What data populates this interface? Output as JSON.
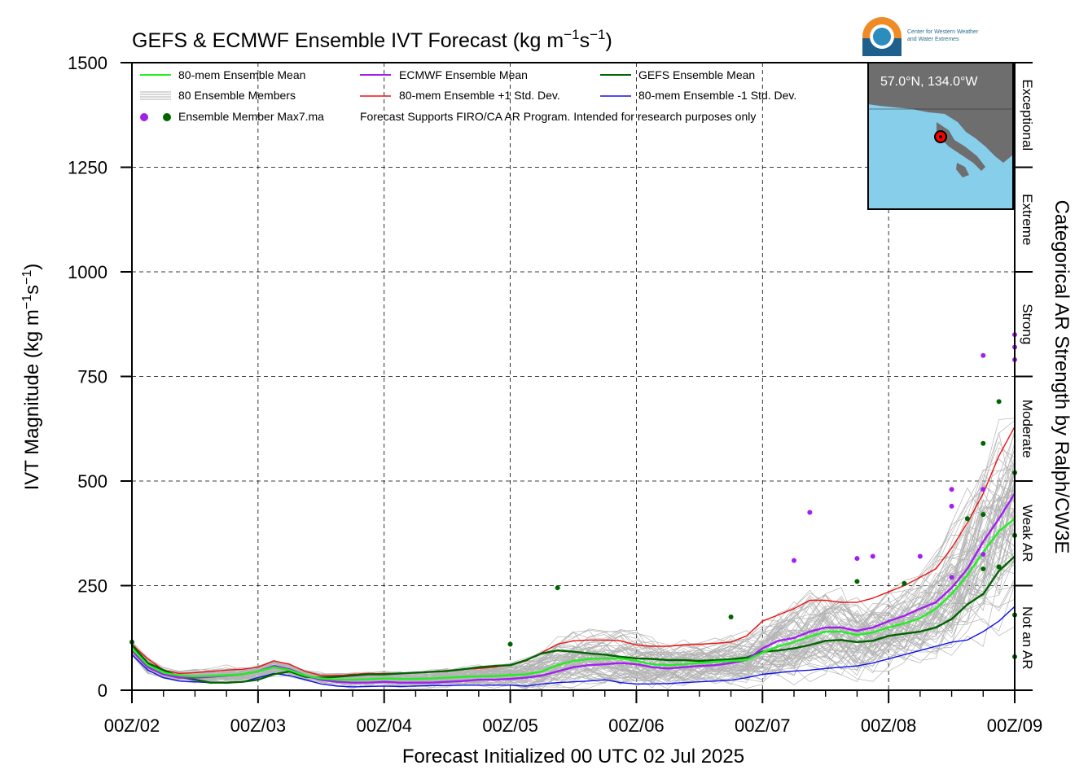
{
  "chart_data": {
    "type": "line",
    "title": "GEFS & ECMWF Ensemble IVT Forecast (kg m",
    "title_exp1": "−1",
    "title_mid": "s",
    "title_exp2": "−1",
    "title_end": ")",
    "ylabel": "IVT Magnitude (kg m",
    "ylabel_exp1": "−1",
    "ylabel_mid": "s",
    "ylabel_exp2": "−1",
    "ylabel_end": ")",
    "xlabel": "Forecast Initialized 00 UTC 02 Jul 2025",
    "right_label": "Categorical AR Strength by Ralph/CW3E",
    "ylim": [
      0,
      1500
    ],
    "xlim": [
      0,
      168
    ],
    "y_ticks": [
      0,
      250,
      500,
      750,
      1000,
      1250,
      1500
    ],
    "x_ticks": [
      {
        "hour": 0,
        "label": "00Z/02"
      },
      {
        "hour": 24,
        "label": "00Z/03"
      },
      {
        "hour": 48,
        "label": "00Z/04"
      },
      {
        "hour": 72,
        "label": "00Z/05"
      },
      {
        "hour": 96,
        "label": "00Z/06"
      },
      {
        "hour": 120,
        "label": "00Z/07"
      },
      {
        "hour": 144,
        "label": "00Z/08"
      },
      {
        "hour": 168,
        "label": "00Z/09"
      }
    ],
    "categories": [
      {
        "label": "Not an AR",
        "from": 0,
        "to": 250
      },
      {
        "label": "Weak AR",
        "from": 250,
        "to": 500
      },
      {
        "label": "Moderate",
        "from": 500,
        "to": 750
      },
      {
        "label": "Strong",
        "from": 750,
        "to": 1000
      },
      {
        "label": "Extreme",
        "from": 1000,
        "to": 1250
      },
      {
        "label": "Exceptional",
        "from": 1250,
        "to": 1500
      }
    ],
    "grid": true,
    "legend_position": "top-left",
    "legend": [
      {
        "label": "80-mem Ensemble Mean",
        "color": "#22ee22",
        "kind": "line"
      },
      {
        "label": "ECMWF Ensemble Mean",
        "color": "#a020f0",
        "kind": "line"
      },
      {
        "label": "GEFS Ensemble Mean",
        "color": "#006400",
        "kind": "line"
      },
      {
        "label": "80 Ensemble Members",
        "color": "#b0b0b0",
        "kind": "lines"
      },
      {
        "label": "80-mem Ensemble +1 Std. Dev.",
        "color": "#ee1111",
        "kind": "line"
      },
      {
        "label": "80-mem Ensemble -1 Std. Dev.",
        "color": "#1010ee",
        "kind": "line"
      },
      {
        "label": "Ensemble Member Max7.ma",
        "color": "#a020f0",
        "color2": "#006400",
        "kind": "dots"
      }
    ],
    "note": "Forecast Supports FIRO/CA AR Program. Intended for research purposes only",
    "x": [
      0,
      3,
      6,
      9,
      12,
      15,
      18,
      21,
      24,
      27,
      30,
      33,
      36,
      39,
      42,
      45,
      48,
      51,
      54,
      57,
      60,
      63,
      66,
      69,
      72,
      75,
      78,
      81,
      84,
      87,
      90,
      93,
      96,
      99,
      102,
      105,
      108,
      111,
      114,
      117,
      120,
      123,
      126,
      129,
      132,
      135,
      138,
      141,
      144,
      147,
      150,
      153,
      156,
      159,
      162,
      165,
      168
    ],
    "series": [
      {
        "name": "80-mem Ensemble Mean",
        "color": "#22ee22",
        "width": 2.4,
        "values": [
          100,
          60,
          42,
          35,
          33,
          34,
          36,
          38,
          45,
          55,
          48,
          35,
          28,
          25,
          25,
          26,
          28,
          27,
          27,
          28,
          30,
          32,
          33,
          34,
          36,
          38,
          45,
          60,
          70,
          75,
          76,
          76,
          70,
          62,
          60,
          62,
          65,
          68,
          70,
          72,
          90,
          105,
          115,
          128,
          140,
          140,
          132,
          138,
          150,
          160,
          172,
          195,
          230,
          275,
          330,
          380,
          410
        ]
      },
      {
        "name": "ECMWF Ensemble Mean",
        "color": "#a020f0",
        "width": 2.4,
        "values": [
          95,
          55,
          38,
          30,
          30,
          32,
          35,
          38,
          45,
          58,
          50,
          35,
          25,
          20,
          18,
          18,
          20,
          18,
          18,
          18,
          20,
          22,
          25,
          25,
          27,
          30,
          35,
          45,
          55,
          60,
          62,
          65,
          62,
          55,
          52,
          55,
          58,
          60,
          65,
          72,
          100,
          118,
          125,
          140,
          150,
          150,
          142,
          150,
          165,
          178,
          195,
          210,
          245,
          290,
          355,
          410,
          470
        ]
      },
      {
        "name": "GEFS Ensemble Mean",
        "color": "#006400",
        "width": 2.4,
        "values": [
          108,
          65,
          48,
          32,
          25,
          18,
          18,
          20,
          25,
          38,
          45,
          32,
          30,
          32,
          35,
          38,
          38,
          40,
          42,
          44,
          46,
          50,
          55,
          58,
          60,
          72,
          88,
          95,
          92,
          88,
          85,
          80,
          76,
          75,
          72,
          72,
          70,
          72,
          74,
          78,
          92,
          95,
          100,
          108,
          118,
          120,
          115,
          118,
          130,
          135,
          140,
          150,
          170,
          205,
          230,
          285,
          320
        ]
      },
      {
        "name": "80-mem Ensemble +1 Std. Dev.",
        "color": "#ee1111",
        "width": 1.4,
        "values": [
          110,
          75,
          48,
          40,
          42,
          45,
          48,
          50,
          55,
          70,
          62,
          45,
          35,
          35,
          38,
          40,
          40,
          40,
          42,
          45,
          47,
          50,
          52,
          55,
          60,
          70,
          90,
          110,
          118,
          120,
          120,
          118,
          108,
          105,
          105,
          108,
          110,
          112,
          115,
          130,
          165,
          180,
          195,
          215,
          215,
          210,
          210,
          220,
          235,
          250,
          270,
          290,
          340,
          400,
          470,
          560,
          630
        ]
      },
      {
        "name": "80-mem Ensemble -1 Std. Dev.",
        "color": "#1010ee",
        "width": 1.4,
        "values": [
          85,
          48,
          30,
          22,
          20,
          18,
          18,
          20,
          30,
          40,
          35,
          25,
          15,
          10,
          8,
          9,
          10,
          9,
          10,
          11,
          11,
          12,
          12,
          12,
          12,
          10,
          15,
          18,
          20,
          22,
          25,
          18,
          15,
          15,
          16,
          18,
          20,
          22,
          24,
          30,
          38,
          42,
          46,
          48,
          52,
          55,
          58,
          65,
          75,
          85,
          95,
          105,
          115,
          120,
          140,
          165,
          200
        ]
      }
    ],
    "max_points_ecmwf": [
      [
        126,
        310
      ],
      [
        129,
        425
      ],
      [
        138,
        315
      ],
      [
        141,
        320
      ],
      [
        150,
        320
      ],
      [
        156,
        270
      ],
      [
        156,
        440
      ],
      [
        156,
        480
      ],
      [
        162,
        325
      ],
      [
        162,
        480
      ],
      [
        162,
        800
      ],
      [
        168,
        790
      ],
      [
        168,
        820
      ],
      [
        168,
        850
      ]
    ],
    "max_points_gefs": [
      [
        0,
        115
      ],
      [
        81,
        245
      ],
      [
        72,
        110
      ],
      [
        114,
        175
      ],
      [
        138,
        260
      ],
      [
        147,
        255
      ],
      [
        159,
        410
      ],
      [
        162,
        590
      ],
      [
        162,
        420
      ],
      [
        162,
        290
      ],
      [
        165,
        690
      ],
      [
        165,
        295
      ],
      [
        168,
        520
      ],
      [
        168,
        370
      ],
      [
        168,
        80
      ],
      [
        168,
        180
      ]
    ]
  },
  "map_inset": {
    "label": "57.0°N, 134.0°W",
    "land_color": "#6e6e6e",
    "water_color": "#87ceeb",
    "marker_color": "#ff0000"
  },
  "logo": {
    "line1": "Center for Western Weather",
    "line2": "and Water Extremes"
  }
}
